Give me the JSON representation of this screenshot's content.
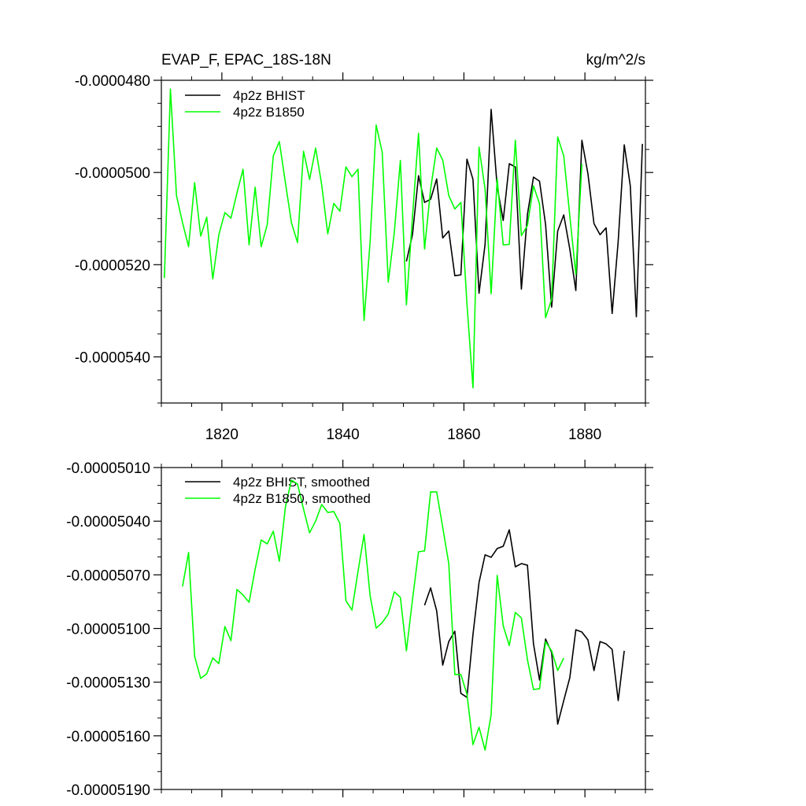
{
  "chart_data": [
    {
      "type": "line",
      "title": "EVAP_F, EPAC_18S-18N",
      "units_label": "kg/m^2/s",
      "xlim": [
        1810,
        1890
      ],
      "ylim": [
        -5.5e-05,
        -4.8e-05
      ],
      "xticks": [
        1820,
        1840,
        1860,
        1880
      ],
      "yticks": [
        {
          "value": -4.8e-05,
          "label": "-0.0000480"
        },
        {
          "value": -5e-05,
          "label": "-0.0000500"
        },
        {
          "value": -5.2e-05,
          "label": "-0.0000520"
        },
        {
          "value": -5.4e-05,
          "label": "-0.0000540"
        }
      ],
      "x": [
        1810.5,
        1811.5,
        1812.5,
        1813.5,
        1814.5,
        1815.5,
        1816.5,
        1817.5,
        1818.5,
        1819.5,
        1820.5,
        1821.5,
        1822.5,
        1823.5,
        1824.5,
        1825.5,
        1826.5,
        1827.5,
        1828.5,
        1829.5,
        1830.5,
        1831.5,
        1832.5,
        1833.5,
        1834.5,
        1835.5,
        1836.5,
        1837.5,
        1838.5,
        1839.5,
        1840.5,
        1841.5,
        1842.5,
        1843.5,
        1844.5,
        1845.5,
        1846.5,
        1847.5,
        1848.5,
        1849.5,
        1850.5,
        1851.5,
        1852.5,
        1853.5,
        1854.5,
        1855.5,
        1856.5,
        1857.5,
        1858.5,
        1859.5,
        1860.5,
        1861.5,
        1862.5,
        1863.5,
        1864.5,
        1865.5,
        1866.5,
        1867.5,
        1868.5,
        1869.5,
        1870.5,
        1871.5,
        1872.5,
        1873.5,
        1874.5,
        1875.5,
        1876.5,
        1877.5,
        1878.5,
        1879.5,
        1880.5,
        1881.5,
        1882.5,
        1883.5,
        1884.5,
        1885.5,
        1886.5,
        1887.5,
        1888.5,
        1889.5
      ],
      "series": [
        {
          "name": "4p2z BHIST",
          "color": "#000000",
          "values": [
            null,
            null,
            null,
            null,
            null,
            null,
            null,
            null,
            null,
            null,
            null,
            null,
            null,
            null,
            null,
            null,
            null,
            null,
            null,
            null,
            null,
            null,
            null,
            null,
            null,
            null,
            null,
            null,
            null,
            null,
            null,
            null,
            null,
            null,
            null,
            null,
            null,
            null,
            null,
            null,
            -5.193e-05,
            -5.135e-05,
            -5.007e-05,
            -5.065e-05,
            -5.058e-05,
            -5.014e-05,
            -5.142e-05,
            -5.127e-05,
            -5.224e-05,
            -5.222e-05,
            -4.971e-05,
            -5.015e-05,
            -5.262e-05,
            -5.156e-05,
            -4.863e-05,
            -5.031e-05,
            -5.104e-05,
            -4.981e-05,
            -4.988e-05,
            -5.253e-05,
            -5.091e-05,
            -5.01e-05,
            -5.019e-05,
            -5.113e-05,
            -5.292e-05,
            -5.127e-05,
            -5.092e-05,
            -5.166e-05,
            -5.256e-05,
            -4.93e-05,
            -5.003e-05,
            -5.111e-05,
            -5.135e-05,
            -5.12e-05,
            -5.306e-05,
            -5.149e-05,
            -4.94e-05,
            -5.029e-05,
            -5.313e-05,
            -4.938e-05
          ]
        },
        {
          "name": "4p2z B1850",
          "color": "#00ff00",
          "values": [
            -5.229e-05,
            -4.819e-05,
            -5.05e-05,
            -5.109e-05,
            -5.161e-05,
            -5.022e-05,
            -5.138e-05,
            -5.097e-05,
            -5.231e-05,
            -5.135e-05,
            -5.087e-05,
            -5.099e-05,
            -5.044e-05,
            -4.993e-05,
            -5.157e-05,
            -5.032e-05,
            -5.161e-05,
            -5.113e-05,
            -4.964e-05,
            -4.933e-05,
            -5.022e-05,
            -5.109e-05,
            -5.152e-05,
            -4.954e-05,
            -5.015e-05,
            -4.947e-05,
            -5.027e-05,
            -5.133e-05,
            -5.067e-05,
            -5.084e-05,
            -4.988e-05,
            -5.009e-05,
            -4.993e-05,
            -5.321e-05,
            -5.15e-05,
            -4.897e-05,
            -4.956e-05,
            -5.238e-05,
            -5.13e-05,
            -4.974e-05,
            -5.287e-05,
            -5.097e-05,
            -4.915e-05,
            -5.166e-05,
            -5.036e-05,
            -4.947e-05,
            -4.973e-05,
            -5.05e-05,
            -5.079e-05,
            -5.065e-05,
            -5.284e-05,
            -5.467e-05,
            -4.945e-05,
            -5.036e-05,
            -5.263e-05,
            -5.014e-05,
            -5.157e-05,
            -5.156e-05,
            -4.93e-05,
            -5.137e-05,
            -5.115e-05,
            -5.029e-05,
            -5.068e-05,
            -5.315e-05,
            -5.275e-05,
            -4.923e-05,
            -4.964e-05,
            -5.094e-05,
            -5.221e-05,
            -4.981e-05,
            null,
            null,
            null,
            null,
            null,
            null,
            null,
            null,
            null,
            null
          ]
        }
      ]
    },
    {
      "type": "line",
      "xlim": [
        1810,
        1890
      ],
      "ylim": [
        -5.19e-05,
        -5.01e-05
      ],
      "xticks": [
        1820,
        1840,
        1860,
        1880
      ],
      "xtick_labels": false,
      "yticks": [
        {
          "value": -5.01e-05,
          "label": "-0.00005010"
        },
        {
          "value": -5.04e-05,
          "label": "-0.00005040"
        },
        {
          "value": -5.07e-05,
          "label": "-0.00005070"
        },
        {
          "value": -5.1e-05,
          "label": "-0.00005100"
        },
        {
          "value": -5.13e-05,
          "label": "-0.00005130"
        },
        {
          "value": -5.16e-05,
          "label": "-0.00005160"
        },
        {
          "value": -5.19e-05,
          "label": "-0.00005190"
        }
      ],
      "x": [
        1810.5,
        1811.5,
        1812.5,
        1813.5,
        1814.5,
        1815.5,
        1816.5,
        1817.5,
        1818.5,
        1819.5,
        1820.5,
        1821.5,
        1822.5,
        1823.5,
        1824.5,
        1825.5,
        1826.5,
        1827.5,
        1828.5,
        1829.5,
        1830.5,
        1831.5,
        1832.5,
        1833.5,
        1834.5,
        1835.5,
        1836.5,
        1837.5,
        1838.5,
        1839.5,
        1840.5,
        1841.5,
        1842.5,
        1843.5,
        1844.5,
        1845.5,
        1846.5,
        1847.5,
        1848.5,
        1849.5,
        1850.5,
        1851.5,
        1852.5,
        1853.5,
        1854.5,
        1855.5,
        1856.5,
        1857.5,
        1858.5,
        1859.5,
        1860.5,
        1861.5,
        1862.5,
        1863.5,
        1864.5,
        1865.5,
        1866.5,
        1867.5,
        1868.5,
        1869.5,
        1870.5,
        1871.5,
        1872.5,
        1873.5,
        1874.5,
        1875.5,
        1876.5,
        1877.5,
        1878.5,
        1879.5,
        1880.5,
        1881.5,
        1882.5,
        1883.5,
        1884.5,
        1885.5,
        1886.5,
        1887.5,
        1888.5,
        1889.5
      ],
      "series": [
        {
          "name": "4p2z BHIST, smoothed",
          "color": "#000000",
          "values": [
            null,
            null,
            null,
            null,
            null,
            null,
            null,
            null,
            null,
            null,
            null,
            null,
            null,
            null,
            null,
            null,
            null,
            null,
            null,
            null,
            null,
            null,
            null,
            null,
            null,
            null,
            null,
            null,
            null,
            null,
            null,
            null,
            null,
            null,
            null,
            null,
            null,
            null,
            null,
            null,
            null,
            null,
            null,
            -5.087e-05,
            -5.0773e-05,
            -5.0901e-05,
            -5.1205e-05,
            -5.1073e-05,
            -5.1015e-05,
            -5.1363e-05,
            -5.1385e-05,
            -5.1033e-05,
            -5.0743e-05,
            -5.0588e-05,
            -5.0602e-05,
            -5.0553e-05,
            -5.054e-05,
            -5.0448e-05,
            -5.0655e-05,
            -5.0637e-05,
            -5.0646e-05,
            -5.1086e-05,
            -5.1288e-05,
            -5.1059e-05,
            -5.1134e-05,
            -5.1535e-05,
            -5.1403e-05,
            -5.1275e-05,
            -5.1007e-05,
            -5.102e-05,
            -5.1064e-05,
            -5.1235e-05,
            -5.1073e-05,
            -5.1086e-05,
            -5.1117e-05,
            -5.1403e-05,
            -5.1125e-05,
            null,
            null,
            null
          ]
        },
        {
          "name": "4p2z B1850, smoothed",
          "color": "#00ff00",
          "values": [
            null,
            null,
            null,
            -5.0765e-05,
            -5.0575e-05,
            -5.1156e-05,
            -5.1279e-05,
            -5.1253e-05,
            -5.1165e-05,
            -5.1196e-05,
            -5.0989e-05,
            -5.1068e-05,
            -5.0782e-05,
            -5.0813e-05,
            -5.0853e-05,
            -5.0668e-05,
            -5.0505e-05,
            -5.0527e-05,
            -5.0456e-05,
            -5.0624e-05,
            -5.032e-05,
            -5.017e-05,
            -5.0192e-05,
            -5.0333e-05,
            -5.0465e-05,
            -5.0399e-05,
            -5.0307e-05,
            -5.0351e-05,
            -5.0346e-05,
            -5.0412e-05,
            -5.0844e-05,
            -5.0897e-05,
            -5.0681e-05,
            -5.0474e-05,
            -5.0817e-05,
            -5.0998e-05,
            -5.0967e-05,
            -5.0919e-05,
            -5.0795e-05,
            -5.0826e-05,
            -5.1125e-05,
            -5.0839e-05,
            -5.0571e-05,
            -5.0566e-05,
            -5.0236e-05,
            -5.0236e-05,
            -5.0434e-05,
            -5.0637e-05,
            -5.1257e-05,
            -5.1257e-05,
            -5.1367e-05,
            -5.1649e-05,
            -5.1552e-05,
            -5.168e-05,
            -5.1482e-05,
            -5.0703e-05,
            -5.0985e-05,
            -5.1095e-05,
            -5.091e-05,
            -5.0941e-05,
            -5.1174e-05,
            -5.1341e-05,
            -5.1337e-05,
            -5.1073e-05,
            -5.1125e-05,
            -5.1235e-05,
            -5.1165e-05,
            null,
            null,
            null,
            null,
            null,
            null,
            null,
            null,
            null,
            null,
            null,
            null,
            null
          ]
        }
      ]
    }
  ]
}
